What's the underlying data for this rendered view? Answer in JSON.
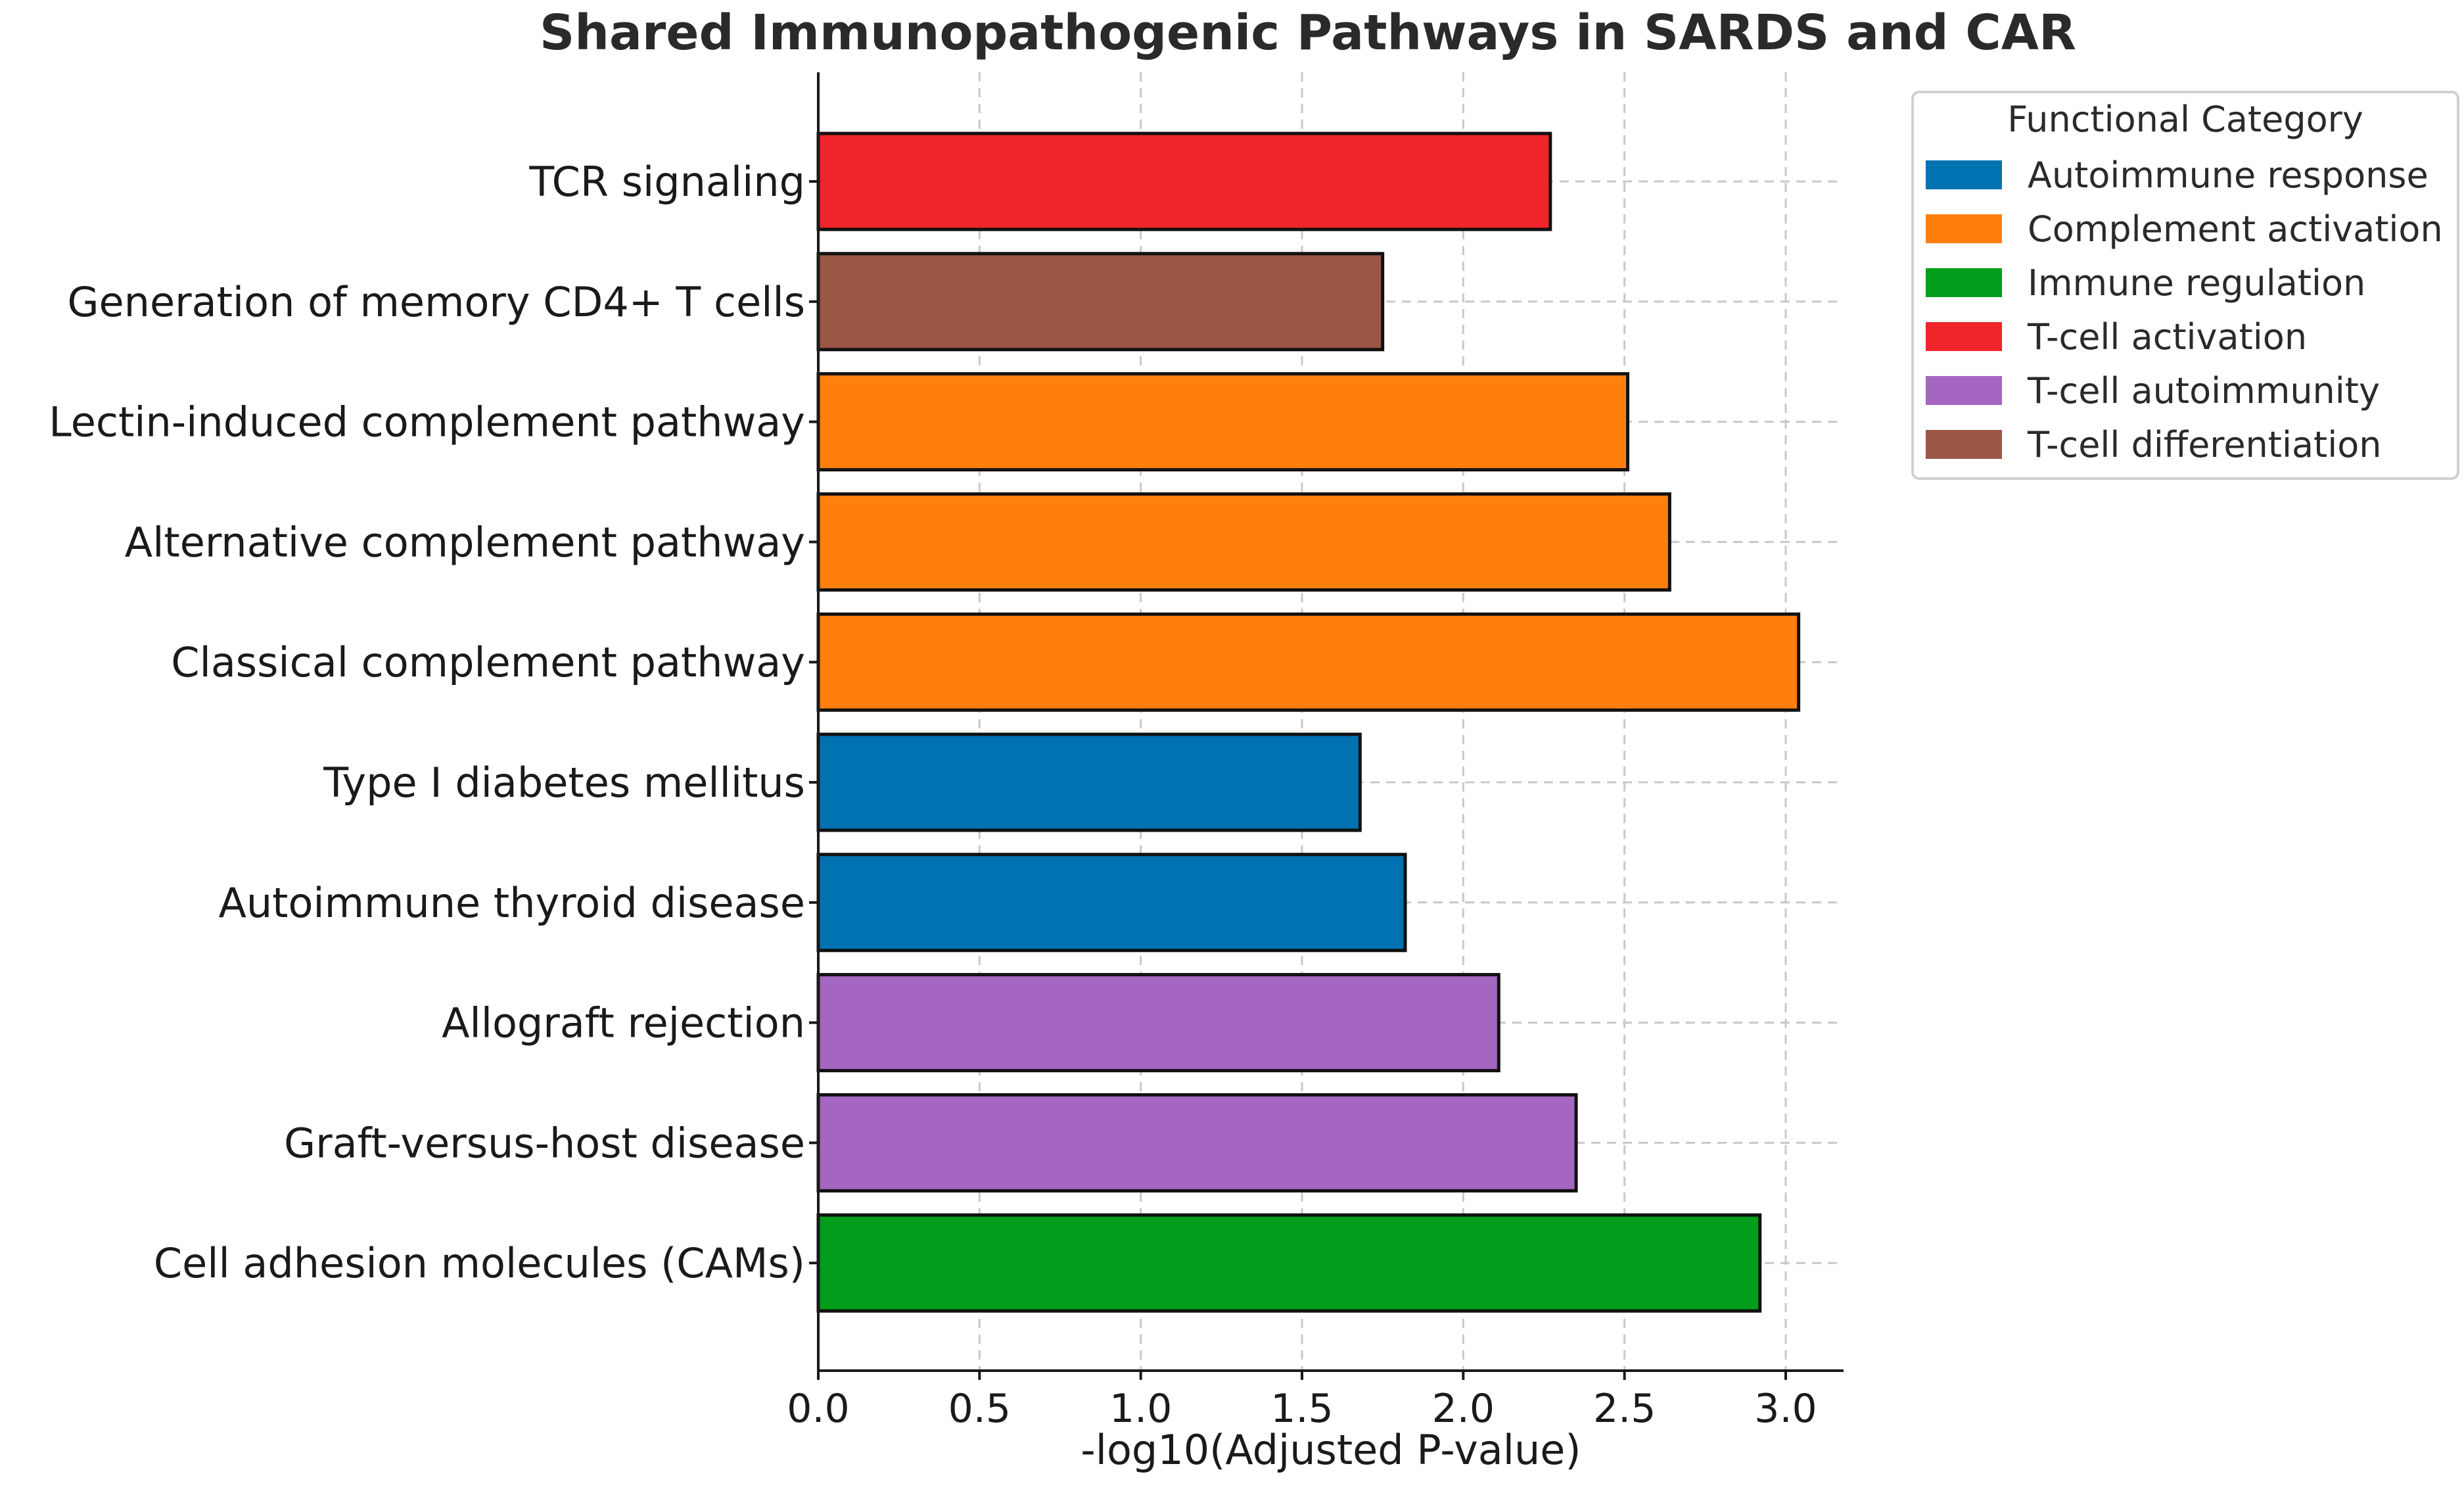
{
  "chart_data": {
    "type": "bar",
    "orientation": "horizontal",
    "title": "Shared Immunopathogenic Pathways in SARDS and CAR",
    "xlabel": "-log10(Adjusted P-value)",
    "ylabel": "",
    "xlim": [
      0,
      3.2
    ],
    "x_ticks": [
      "0.0",
      "0.5",
      "1.0",
      "1.5",
      "2.0",
      "2.5",
      "3.0"
    ],
    "x_tick_values": [
      0,
      0.5,
      1.0,
      1.5,
      2.0,
      2.5,
      3.0
    ],
    "grid": true,
    "legend": {
      "title": "Functional Category",
      "placement": "top-right, outside plot",
      "entries": [
        {
          "label": "Autoimmune response",
          "color": "#0072b2"
        },
        {
          "label": "Complement activation",
          "color": "#ff7f0e"
        },
        {
          "label": "Immune regulation",
          "color": "#009e1a"
        },
        {
          "label": "T-cell activation",
          "color": "#f0252a"
        },
        {
          "label": "T-cell autoimmunity",
          "color": "#a466c0"
        },
        {
          "label": "T-cell differentiation",
          "color": "#9c5646"
        }
      ]
    },
    "categories": [
      "TCR signaling",
      "Generation of memory CD4+ T cells",
      "Lectin-induced complement pathway",
      "Alternative complement pathway",
      "Classical complement pathway",
      "Type I diabetes mellitus",
      "Autoimmune thyroid disease",
      "Allograft rejection",
      "Graft-versus-host disease",
      "Cell adhesion molecules (CAMs)"
    ],
    "values": [
      2.27,
      1.75,
      2.51,
      2.64,
      3.04,
      1.68,
      1.82,
      2.11,
      2.35,
      2.92
    ],
    "bar_categories": [
      "T-cell activation",
      "T-cell differentiation",
      "Complement activation",
      "Complement activation",
      "Complement activation",
      "Autoimmune response",
      "Autoimmune response",
      "T-cell autoimmunity",
      "T-cell autoimmunity",
      "Immune regulation"
    ]
  }
}
